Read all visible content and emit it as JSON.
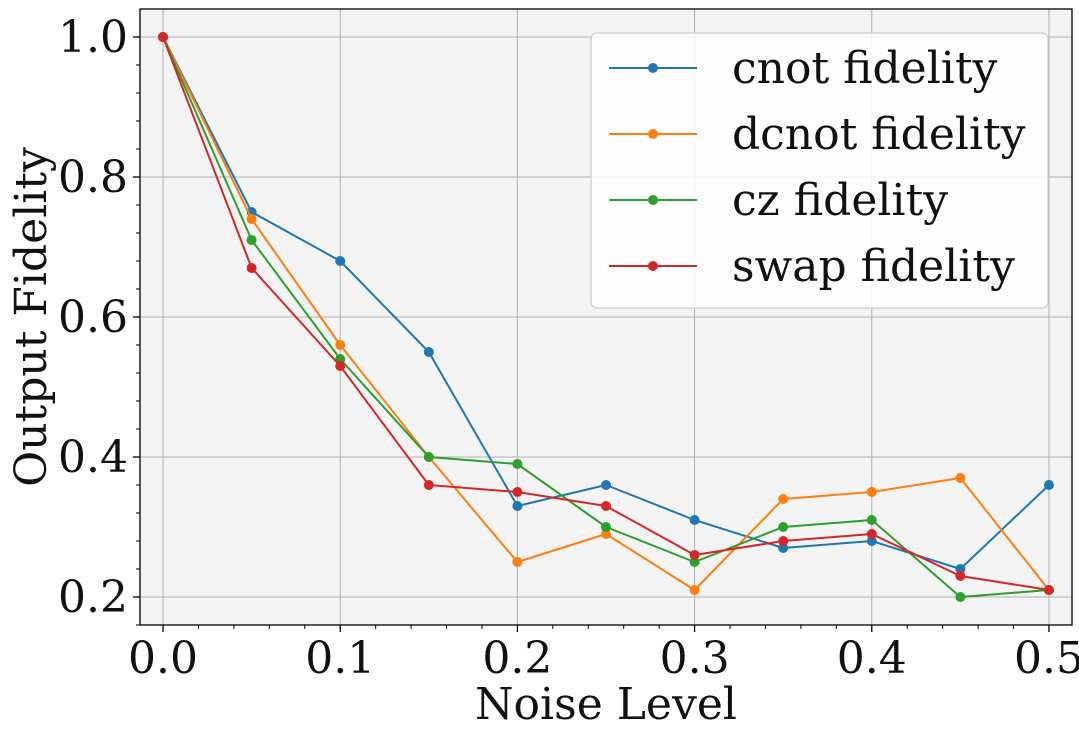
{
  "chart_data": {
    "type": "line",
    "title": "",
    "xlabel": "Noise Level",
    "ylabel": "Output Fidelity",
    "x": [
      0.0,
      0.05,
      0.1,
      0.15,
      0.2,
      0.25,
      0.3,
      0.35,
      0.4,
      0.45,
      0.5
    ],
    "xlim": [
      -0.013,
      0.513
    ],
    "ylim": [
      0.16,
      1.04
    ],
    "xticks": [
      0.0,
      0.1,
      0.2,
      0.3,
      0.4,
      0.5
    ],
    "xtick_labels": [
      "0.0",
      "0.1",
      "0.2",
      "0.3",
      "0.4",
      "0.5"
    ],
    "yticks": [
      0.2,
      0.4,
      0.6,
      0.8,
      1.0
    ],
    "ytick_labels": [
      "0.2",
      "0.4",
      "0.6",
      "0.8",
      "1.0"
    ],
    "grid": true,
    "legend_position": "top-right",
    "series": [
      {
        "name": "cnot fidelity",
        "color": "#1f77b4",
        "values": [
          1.0,
          0.75,
          0.68,
          0.55,
          0.33,
          0.36,
          0.31,
          0.27,
          0.28,
          0.24,
          0.36
        ]
      },
      {
        "name": "dcnot fidelity",
        "color": "#ff7f0e",
        "values": [
          1.0,
          0.74,
          0.56,
          0.4,
          0.25,
          0.29,
          0.21,
          0.34,
          0.35,
          0.37,
          0.21
        ]
      },
      {
        "name": "cz fidelity",
        "color": "#2ca02c",
        "values": [
          1.0,
          0.71,
          0.54,
          0.4,
          0.39,
          0.3,
          0.25,
          0.3,
          0.31,
          0.2,
          0.21
        ]
      },
      {
        "name": "swap fidelity",
        "color": "#d62728",
        "values": [
          1.0,
          0.67,
          0.53,
          0.36,
          0.35,
          0.33,
          0.26,
          0.28,
          0.29,
          0.23,
          0.21
        ]
      }
    ]
  }
}
